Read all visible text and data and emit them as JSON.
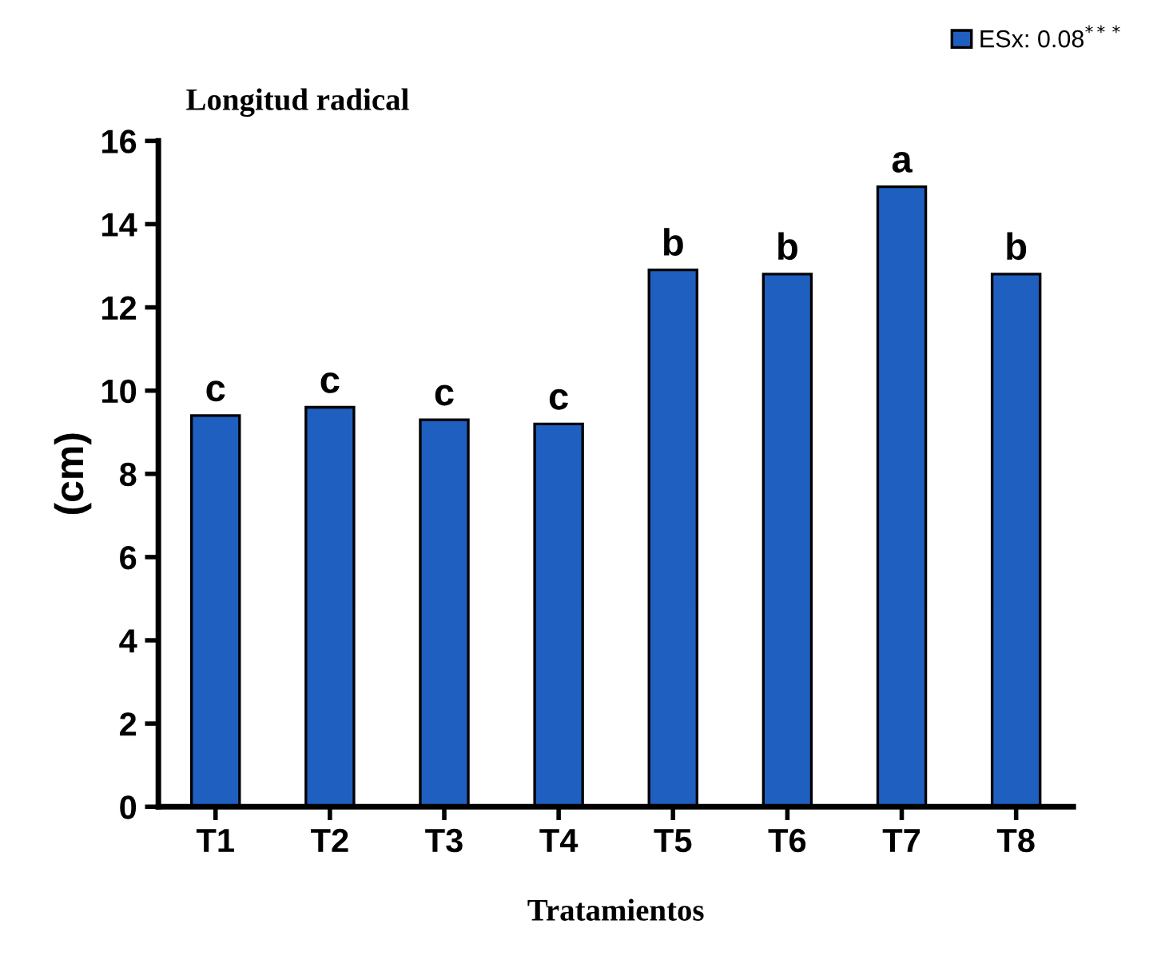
{
  "chart_data": {
    "type": "bar",
    "title": "Longitud radical",
    "xlabel": "Tratamientos",
    "ylabel": "(cm)",
    "categories": [
      "T1",
      "T2",
      "T3",
      "T4",
      "T5",
      "T6",
      "T7",
      "T8"
    ],
    "series": [
      {
        "name": "ESx: 0.08$^{***}$",
        "color": "#1f5fbf",
        "values": [
          9.4,
          9.6,
          9.3,
          9.2,
          12.9,
          12.8,
          14.9,
          12.8
        ]
      }
    ],
    "annotations": [
      {
        "text": "c",
        "x": "T1",
        "y": 9.4
      },
      {
        "text": "c",
        "x": "T2",
        "y": 9.6
      },
      {
        "text": "c",
        "x": "T3",
        "y": 9.3
      },
      {
        "text": "c",
        "x": "T4",
        "y": 9.2
      },
      {
        "text": "b",
        "x": "T5",
        "y": 12.9
      },
      {
        "text": "b",
        "x": "T6",
        "y": 12.8
      },
      {
        "text": "a",
        "x": "T7",
        "y": 14.9
      },
      {
        "text": "b",
        "x": "T8",
        "y": 12.8
      }
    ],
    "ylim": [
      0,
      16
    ],
    "yticks": [
      0,
      2,
      4,
      6,
      8,
      10,
      12,
      14,
      16
    ],
    "grid": false,
    "legend": "top right"
  }
}
